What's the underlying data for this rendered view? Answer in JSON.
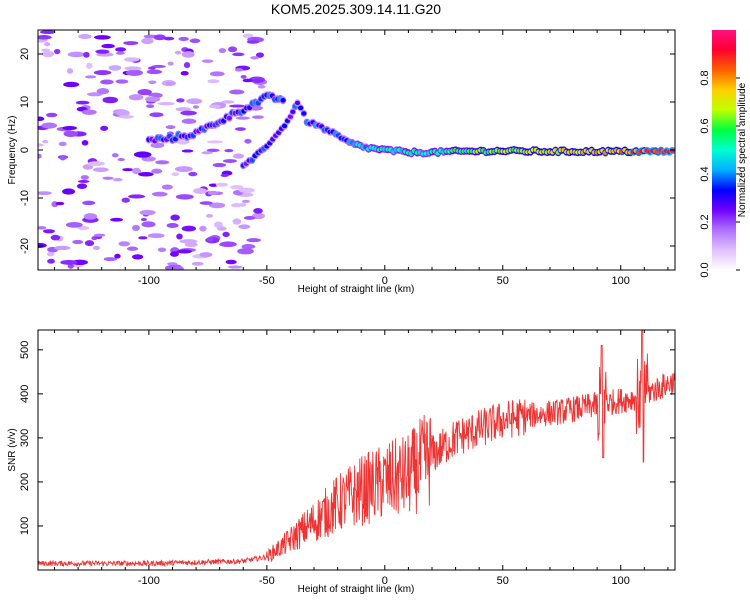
{
  "chart_data": [
    {
      "type": "heatmap",
      "title": "KOM5.2025.309.14.11.G20",
      "xlabel": "Height of straight line (km)",
      "ylabel": "Frequency (Hz)",
      "xlim": [
        -147,
        123
      ],
      "ylim": [
        -25,
        25
      ],
      "xticks": [
        -100,
        -50,
        0,
        50,
        100
      ],
      "yticks": [
        -20,
        -10,
        0,
        10,
        20
      ],
      "colorbar": {
        "label": "Normalized spectral amplitude",
        "range": [
          0,
          1
        ],
        "ticks": [
          "0.0",
          "0.2",
          "0.4",
          "0.6",
          "0.8"
        ],
        "colors": [
          "#ffffff",
          "#e0c0ff",
          "#b070ff",
          "#7000ff",
          "#0000ff",
          "#00b0ff",
          "#00ffd0",
          "#00ff40",
          "#c0ff00",
          "#ffd000",
          "#ff6000",
          "#ff0030",
          "#ff1080"
        ]
      },
      "ridge": [
        {
          "x": -60,
          "y": -3.5,
          "a": 0.3
        },
        {
          "x": -55,
          "y": -1.5,
          "a": 0.3
        },
        {
          "x": -50,
          "y": 1,
          "a": 0.32
        },
        {
          "x": -45,
          "y": 3.5,
          "a": 0.32
        },
        {
          "x": -40,
          "y": 7,
          "a": 0.3
        },
        {
          "x": -37,
          "y": 10,
          "a": 0.33
        },
        {
          "x": -33,
          "y": 6,
          "a": 0.35
        },
        {
          "x": -28,
          "y": 5,
          "a": 0.36
        },
        {
          "x": -22,
          "y": 3.5,
          "a": 0.38
        },
        {
          "x": -15,
          "y": 1.5,
          "a": 0.4
        },
        {
          "x": -8,
          "y": 0.5,
          "a": 0.45
        },
        {
          "x": 0,
          "y": 0,
          "a": 0.5
        },
        {
          "x": 10,
          "y": -0.5,
          "a": 0.5
        },
        {
          "x": 20,
          "y": -0.5,
          "a": 0.5
        },
        {
          "x": 30,
          "y": -0.3,
          "a": 0.55
        },
        {
          "x": 50,
          "y": -0.2,
          "a": 0.65
        },
        {
          "x": 70,
          "y": -0.3,
          "a": 0.7
        },
        {
          "x": 90,
          "y": -0.3,
          "a": 0.75
        },
        {
          "x": 110,
          "y": -0.3,
          "a": 0.85
        },
        {
          "x": 123,
          "y": -0.3,
          "a": 0.95
        }
      ],
      "branches": [
        {
          "x": -100,
          "y": 2,
          "a": 0.3
        },
        {
          "x": -90,
          "y": 2.5,
          "a": 0.33
        },
        {
          "x": -80,
          "y": 3.5,
          "a": 0.32
        },
        {
          "x": -72,
          "y": 5.5,
          "a": 0.3
        },
        {
          "x": -50,
          "y": 11,
          "a": 0.35
        },
        {
          "x": -42,
          "y": 10.5,
          "a": 0.4
        }
      ]
    },
    {
      "type": "line",
      "title": "",
      "xlabel": "Height of straight line (km)",
      "ylabel": "SNR (v/v)",
      "xlim": [
        -147,
        123
      ],
      "ylim": [
        0,
        545
      ],
      "xticks": [
        -100,
        -50,
        0,
        50,
        100
      ],
      "yticks": [
        100,
        200,
        300,
        400,
        500
      ],
      "color": "#ee3333",
      "trend": [
        {
          "x": -147,
          "y": 15
        },
        {
          "x": -100,
          "y": 15
        },
        {
          "x": -60,
          "y": 20
        },
        {
          "x": -50,
          "y": 30
        },
        {
          "x": -42,
          "y": 60
        },
        {
          "x": -30,
          "y": 110
        },
        {
          "x": -20,
          "y": 150
        },
        {
          "x": -10,
          "y": 180
        },
        {
          "x": 0,
          "y": 200
        },
        {
          "x": 10,
          "y": 215
        },
        {
          "x": 20,
          "y": 260
        },
        {
          "x": 30,
          "y": 300
        },
        {
          "x": 40,
          "y": 320
        },
        {
          "x": 50,
          "y": 340
        },
        {
          "x": 60,
          "y": 350
        },
        {
          "x": 75,
          "y": 360
        },
        {
          "x": 90,
          "y": 375
        },
        {
          "x": 105,
          "y": 390
        },
        {
          "x": 115,
          "y": 410
        },
        {
          "x": 123,
          "y": 430
        }
      ],
      "spikes": [
        {
          "x": 92,
          "low": 255,
          "high": 510
        },
        {
          "x": 109,
          "low": 245,
          "high": 545
        }
      ]
    }
  ]
}
